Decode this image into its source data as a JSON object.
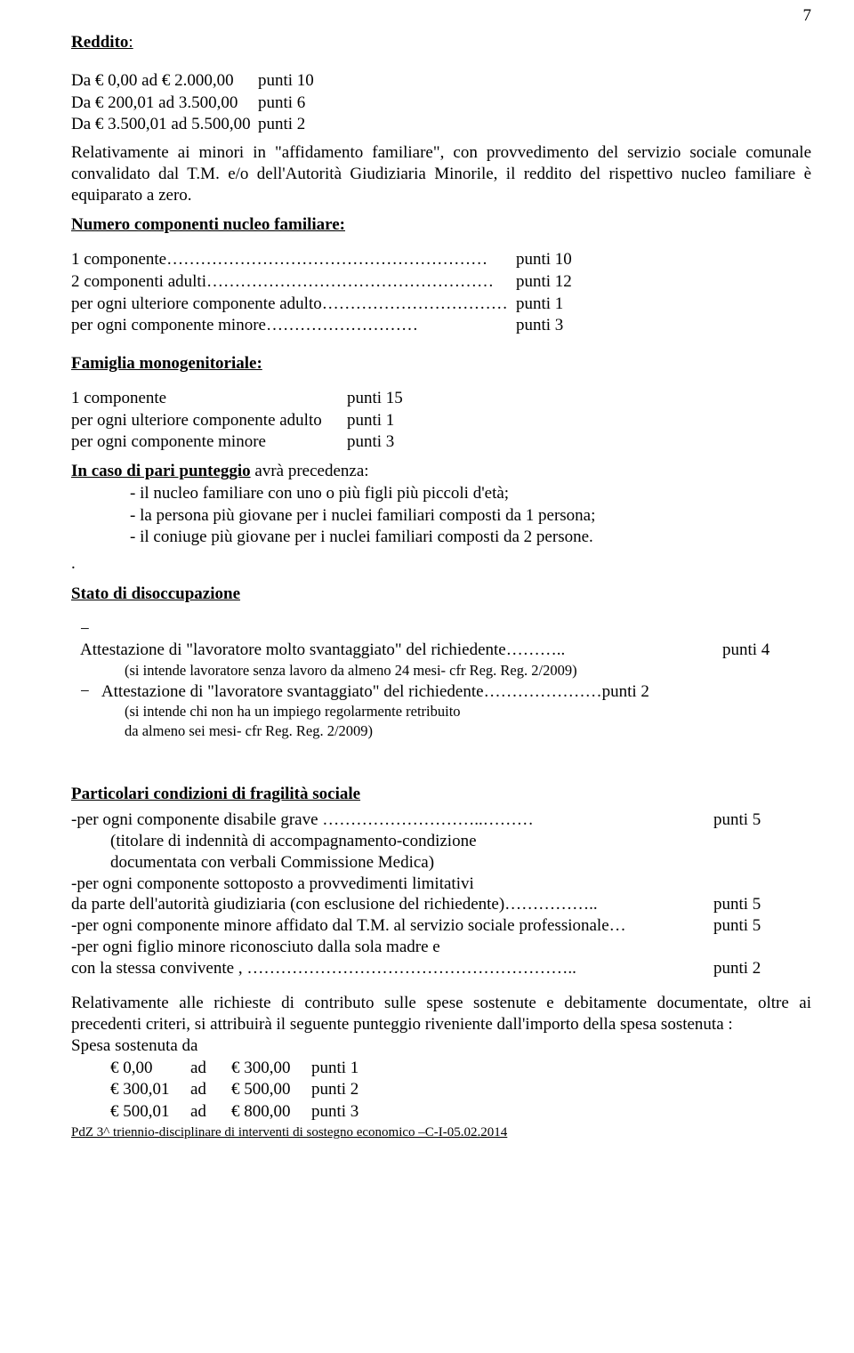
{
  "page_number": "7",
  "reddito": {
    "heading": "Reddito",
    "rows": [
      {
        "label": "Da € 0,00 ad € 2.000,00",
        "points": "punti 10"
      },
      {
        "label": "Da € 200,01 ad   3.500,00",
        "points": "punti  6"
      },
      {
        "label": "Da € 3.500,01 ad  5.500,00",
        "points": "punti  2"
      }
    ],
    "note": "Relativamente ai minori in \"affidamento familiare\", con provvedimento del servizio sociale comunale convalidato dal T.M. e/o dell'Autorità Giudiziaria Minorile, il reddito del rispettivo nucleo familiare è equiparato a zero."
  },
  "nucleo": {
    "heading": "Numero componenti nucleo familiare:",
    "rows": [
      {
        "label": "1 componente…………………………………………………",
        "points": "punti  10"
      },
      {
        "label": "2 componenti adulti……………………………………………",
        "points": "punti  12"
      },
      {
        "label": "per ogni ulteriore componente adulto……………………………",
        "points": "punti    1"
      },
      {
        "label": "per ogni componente  minore………………………",
        "points": "punti    3"
      }
    ]
  },
  "mono": {
    "heading": "Famiglia monogenitoriale:",
    "rows": [
      {
        "label": "1 componente",
        "points": "punti  15"
      },
      {
        "label": "per ogni ulteriore componente adulto",
        "points": "punti    1"
      },
      {
        "label": "per ogni  componente minore",
        "points": "punti    3"
      }
    ]
  },
  "pari": {
    "heading": "In caso di pari punteggio",
    "suffix": "  avrà precedenza:",
    "items": [
      "il nucleo familiare con uno o più figli  più piccoli d'età;",
      "la persona più giovane per i nuclei familiari composti da 1 persona;",
      "il coniuge più giovane per i nuclei familiari composti da 2 persone."
    ],
    "dot": "."
  },
  "disoc": {
    "heading": "Stato di disoccupazione",
    "items": [
      {
        "label": "Attestazione di \"lavoratore molto svantaggiato\" del richiedente………..",
        "points": "punti 4",
        "note": "(si intende lavoratore senza lavoro da almeno 24 mesi- cfr Reg. Reg. 2/2009)"
      },
      {
        "label": "Attestazione di \"lavoratore svantaggiato\" del richiedente…………………punti  2",
        "points": "",
        "note": "(si intende chi non ha un impiego regolarmente retribuito",
        "note2": " da almeno sei mesi- cfr Reg. Reg. 2/2009)"
      }
    ]
  },
  "frag": {
    "heading": "Particolari condizioni di fragilità sociale",
    "rows": [
      {
        "left": "-per ogni componente disabile grave ………………………..………",
        "right": "punti 5"
      }
    ],
    "note1": "(titolare di indennità di accompagnamento-condizione",
    "note2": "documentata con verbali Commissione Medica)",
    "rows2": [
      {
        "left": "-per ogni componente sottoposto a provvedimenti limitativi",
        "right": ""
      },
      {
        "left": "da parte dell'autorità giudiziaria  (con esclusione del richiedente)……………..",
        "right": "punti 5"
      },
      {
        "left": "-per ogni componente minore affidato dal T.M. al servizio sociale professionale…",
        "right": "punti  5"
      },
      {
        "left": "-per ogni figlio minore riconosciuto dalla sola madre e",
        "right": ""
      },
      {
        "left": "con la stessa convivente , …………………………………………………..",
        "right": "punti 2"
      }
    ]
  },
  "spesa": {
    "intro": "Relativamente alle richieste di contributo sulle spese sostenute e debitamente documentate, oltre ai precedenti criteri, si attribuirà il seguente punteggio riveniente dall'importo della spesa sostenuta :",
    "heading": "Spesa sostenuta da",
    "rows": [
      {
        "c1": "€   0,00",
        "c2": "ad",
        "c3": "€   300,00",
        "c4": "punti 1"
      },
      {
        "c1": "€   300,01",
        "c2": "ad",
        "c3": "€   500,00",
        "c4": "punti 2"
      },
      {
        "c1": "€   500,01",
        "c2": "ad",
        "c3": "€   800,00",
        "c4": "punti 3"
      }
    ]
  },
  "footer": "PdZ 3^ triennio-disciplinare di interventi di sostegno economico –C-I-05.02.2014"
}
